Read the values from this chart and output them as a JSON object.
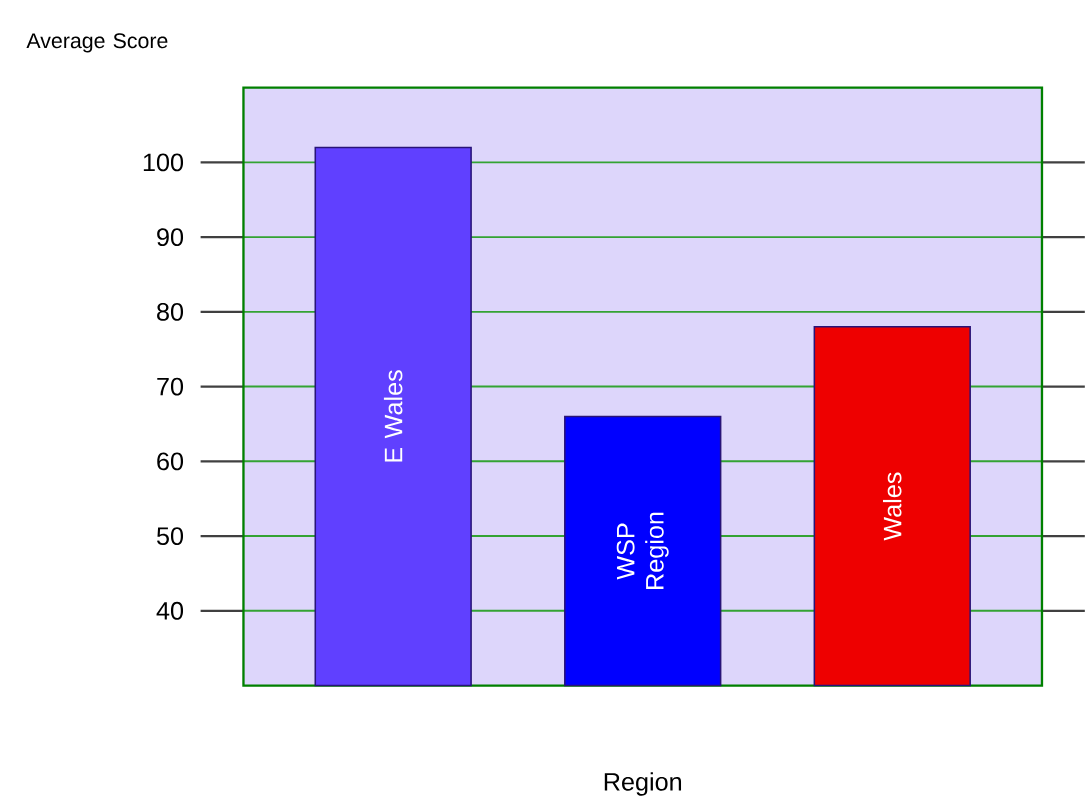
{
  "chart_data": {
    "type": "bar",
    "ylabel": "Average Score",
    "xlabel": "Region",
    "categories": [
      "E Wales",
      "WSP Region",
      "Wales"
    ],
    "values": [
      102,
      66,
      78
    ],
    "colors": [
      "#6040ff",
      "#0000ff",
      "#ee0000"
    ],
    "ylim": [
      30,
      110
    ],
    "yticks": [
      40,
      50,
      60,
      70,
      80,
      90,
      100
    ],
    "grid": "y"
  }
}
